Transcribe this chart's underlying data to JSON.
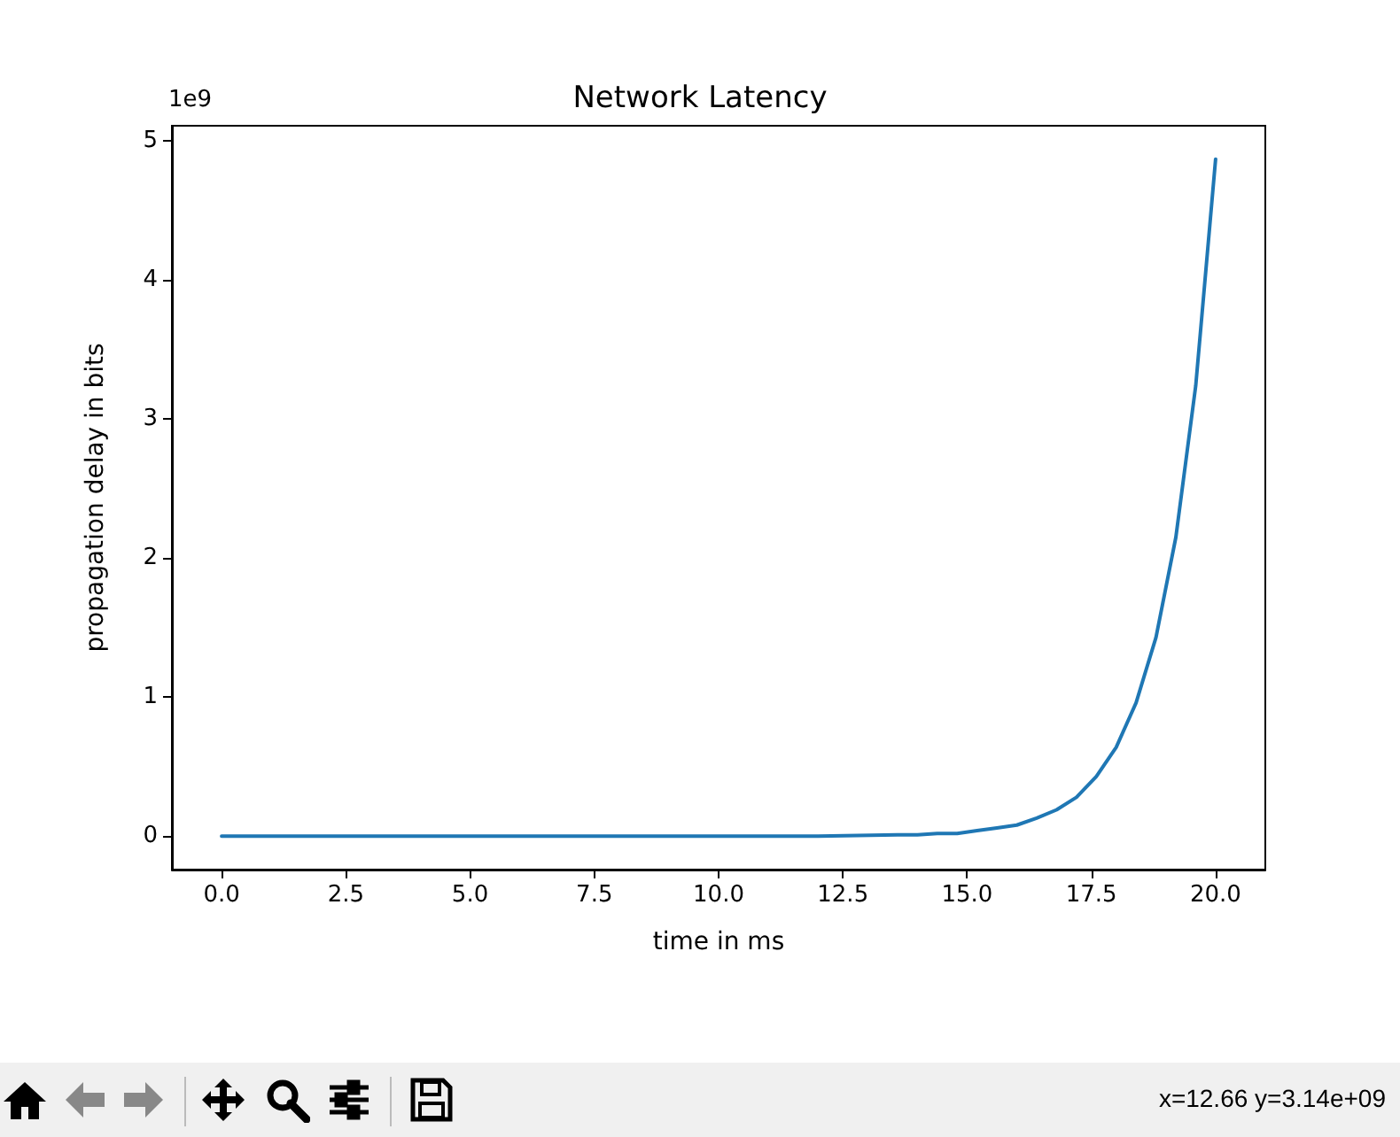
{
  "chart_data": {
    "type": "line",
    "title": "Network Latency",
    "xlabel": "time in ms",
    "ylabel": "propagation delay in bits",
    "annotations": [
      "1e9",
      "x=12.66 y=3.14e+09"
    ],
    "x": [
      0,
      5,
      10,
      12,
      13.6,
      14.0,
      14.4,
      14.8,
      15.2,
      15.6,
      16.0,
      16.4,
      16.8,
      17.2,
      17.6,
      18.0,
      18.4,
      18.8,
      19.2,
      19.6,
      20.0
    ],
    "series": [
      {
        "color": "#1f77b4",
        "values": [
          0,
          0,
          0,
          0,
          0.01,
          0.01,
          0.02,
          0.02,
          0.04,
          0.06,
          0.08,
          0.13,
          0.19,
          0.28,
          0.43,
          0.64,
          0.96,
          1.43,
          2.15,
          3.24,
          4.87
        ]
      }
    ],
    "xlim": [
      -1,
      21
    ],
    "ylim": [
      -0.24,
      5.11
    ],
    "xticks": [
      {
        "value": 0,
        "label": "0.0"
      },
      {
        "value": 2.5,
        "label": "2.5"
      },
      {
        "value": 5,
        "label": "5.0"
      },
      {
        "value": 7.5,
        "label": "7.5"
      },
      {
        "value": 10,
        "label": "10.0"
      },
      {
        "value": 12.5,
        "label": "12.5"
      },
      {
        "value": 15,
        "label": "15.0"
      },
      {
        "value": 17.5,
        "label": "17.5"
      },
      {
        "value": 20,
        "label": "20.0"
      }
    ],
    "yticks": [
      0,
      1,
      2,
      3,
      4,
      5
    ],
    "grid": false,
    "marker": "none",
    "line_style": "solid"
  }
}
